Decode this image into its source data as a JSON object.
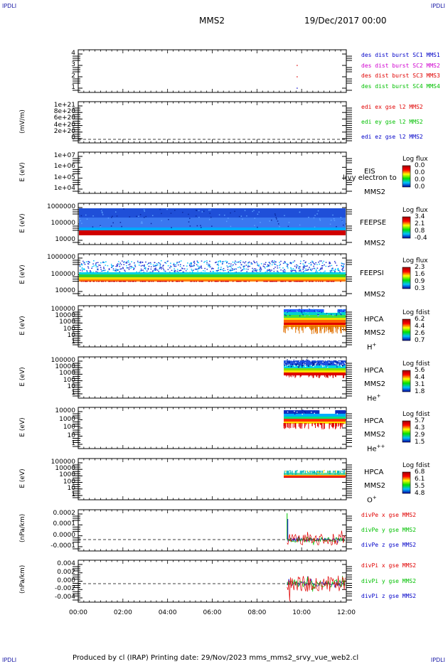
{
  "corners": {
    "tl": "IPDLI",
    "tr": "IPDLI",
    "bl": "IPDLI",
    "br": "IPDLI"
  },
  "header": {
    "spacecraft": "MMS2",
    "date": "19/Dec/2017 00:00"
  },
  "footer": {
    "text": "Produced by cl (IRAP)   Printing date: 29/Nov/2023   mms_mms2_srvy_vue_web2.cl"
  },
  "x_axis": {
    "labels": [
      "00:00",
      "02:00",
      "04:00",
      "06:00",
      "08:00",
      "10:00",
      "12:00"
    ],
    "range_hours": [
      0,
      12
    ]
  },
  "panels": {
    "p1": {
      "ticks": [
        "4",
        "3",
        "2",
        "1"
      ],
      "legend": [
        {
          "text": "des dist burst SC1 MMS1",
          "color": "#0000c8"
        },
        {
          "text": "des dist burst SC2 MMS2",
          "color": "#d000d0"
        },
        {
          "text": "des dist burst SC3 MMS3",
          "color": "#e00000"
        },
        {
          "text": "des dist burst SC4 MMS4",
          "color": "#00c000"
        }
      ]
    },
    "p2": {
      "ylabel": "(mV/m)",
      "ticks": [
        "1e+21",
        "8e+20",
        "6e+20",
        "4e+20",
        "2e+20",
        "0"
      ],
      "legend": [
        {
          "text": "edi ex gse l2 MMS2",
          "color": "#e00000"
        },
        {
          "text": "edi ey gse l2 MMS2",
          "color": "#00c000"
        },
        {
          "text": "edi ez gse l2 MMS2",
          "color": "#0000c8"
        }
      ]
    },
    "p3": {
      "ylabel": "E (eV)",
      "ticks": [
        "1e+07",
        "1e+06",
        "1e+05",
        "1e+04"
      ],
      "inst": "EIS",
      "sc": "MMS2",
      "overlay": "l(vy electron to",
      "cbtitle": "Log flux",
      "cb": [
        "0.0",
        "0.0",
        "0.0",
        "0.0"
      ]
    },
    "p4": {
      "ylabel": "E (eV)",
      "ticks": [
        "1000000",
        "100000",
        "10000"
      ],
      "inst": "FEEPSE",
      "sc": "MMS2",
      "cbtitle": "Log flux",
      "cb": [
        "3.4",
        "2.1",
        "0.8",
        "-0.4"
      ]
    },
    "p5": {
      "ylabel": "E (eV)",
      "ticks": [
        "1000000",
        "100000",
        "10000"
      ],
      "inst": "FEEPSI",
      "sc": "MMS2",
      "cbtitle": "Log flux",
      "cb": [
        "2.3",
        "1.6",
        "0.9",
        "0.3"
      ]
    },
    "p6": {
      "ylabel": "E (eV)",
      "ticks": [
        "100000",
        "10000",
        "1000",
        "100",
        "10",
        "1"
      ],
      "inst": "HPCA",
      "sc": "MMS2",
      "ion": "H",
      "ion_sup": "+",
      "cbtitle": "Log fdist",
      "cb": [
        "6.2",
        "4.4",
        "2.6",
        "0.7"
      ]
    },
    "p7": {
      "ylabel": "E (eV)",
      "ticks": [
        "100000",
        "10000",
        "1000",
        "100",
        "10",
        "1"
      ],
      "inst": "HPCA",
      "sc": "MMS2",
      "ion": "He",
      "ion_sup": "+",
      "cbtitle": "Log fdist",
      "cb": [
        "5.6",
        "4.4",
        "3.1",
        "1.8"
      ]
    },
    "p8": {
      "ylabel": "E (eV)",
      "ticks": [
        "10000",
        "1000",
        "100",
        "10",
        "1"
      ],
      "inst": "HPCA",
      "sc": "MMS2",
      "ion": "He",
      "ion_sup": "++",
      "cbtitle": "Log fdist",
      "cb": [
        "5.7",
        "4.3",
        "2.9",
        "1.5"
      ]
    },
    "p9": {
      "ylabel": "E (eV)",
      "ticks": [
        "100000",
        "10000",
        "1000",
        "100",
        "10",
        "1"
      ],
      "inst": "HPCA",
      "sc": "MMS2",
      "ion": "O",
      "ion_sup": "+",
      "cbtitle": "Log fdist",
      "cb": [
        "6.8",
        "6.1",
        "5.5",
        "4.8"
      ]
    },
    "p10": {
      "ylabel": "(nPa/km)",
      "ticks": [
        "0.0002",
        "0.0001",
        "0.0000",
        "-0.0001"
      ],
      "legend": [
        {
          "text": "divPe x gse MMS2",
          "color": "#e00000"
        },
        {
          "text": "divPe y gse MMS2",
          "color": "#00c000"
        },
        {
          "text": "divPe z gse MMS2",
          "color": "#0000c8"
        }
      ]
    },
    "p11": {
      "ylabel": "(nPa/km)",
      "ticks": [
        "0.004",
        "0.002",
        "0.000",
        "-0.002",
        "-0.004"
      ],
      "legend": [
        {
          "text": "divPi x gse MMS2",
          "color": "#e00000"
        },
        {
          "text": "divPi y gse MMS2",
          "color": "#00c000"
        },
        {
          "text": "divPi z gse MMS2",
          "color": "#0000c8"
        }
      ]
    }
  },
  "chart_data": [
    {
      "type": "scatter",
      "panel": "des dist burst",
      "x_hours": [
        9.8,
        9.8,
        9.8
      ],
      "y": [
        3,
        2,
        1
      ],
      "ylim": [
        0.5,
        4.2
      ]
    },
    {
      "type": "line",
      "panel": "edi E gse l2",
      "ylabel": "(mV/m)",
      "ylim": [
        0,
        1.1e+21
      ],
      "values": "dashed zero line"
    },
    {
      "type": "heatmap",
      "panel": "EIS",
      "ylabel": "E (eV)",
      "ylim": [
        10000.0,
        10000000.0
      ],
      "coverage_hours": []
    },
    {
      "type": "heatmap",
      "panel": "FEEPSE",
      "ylabel": "E (eV)",
      "ylim": [
        10000.0,
        1000000.0
      ],
      "coverage_hours": [
        0,
        12
      ]
    },
    {
      "type": "heatmap",
      "panel": "FEEPSI",
      "ylabel": "E (eV)",
      "ylim": [
        10000.0,
        1000000.0
      ],
      "coverage_hours": [
        0,
        12
      ]
    },
    {
      "type": "heatmap",
      "panel": "HPCA H+",
      "ylim": [
        1,
        100000.0
      ],
      "coverage_hours": [
        9.1,
        12
      ]
    },
    {
      "type": "heatmap",
      "panel": "HPCA He+",
      "ylim": [
        1,
        100000.0
      ],
      "coverage_hours": [
        9.1,
        12
      ]
    },
    {
      "type": "heatmap",
      "panel": "HPCA He++",
      "ylim": [
        1,
        10000.0
      ],
      "coverage_hours": [
        9.1,
        12
      ]
    },
    {
      "type": "heatmap",
      "panel": "HPCA O+",
      "ylim": [
        1,
        100000.0
      ],
      "coverage_hours": [
        9.1,
        12
      ]
    },
    {
      "type": "line",
      "panel": "divPe gse",
      "ylim": [
        -0.00015,
        0.00025
      ],
      "coverage_hours": [
        9.4,
        12
      ]
    },
    {
      "type": "line",
      "panel": "divPi gse",
      "ylim": [
        -0.005,
        0.005
      ],
      "coverage_hours": [
        9.4,
        12
      ]
    }
  ]
}
